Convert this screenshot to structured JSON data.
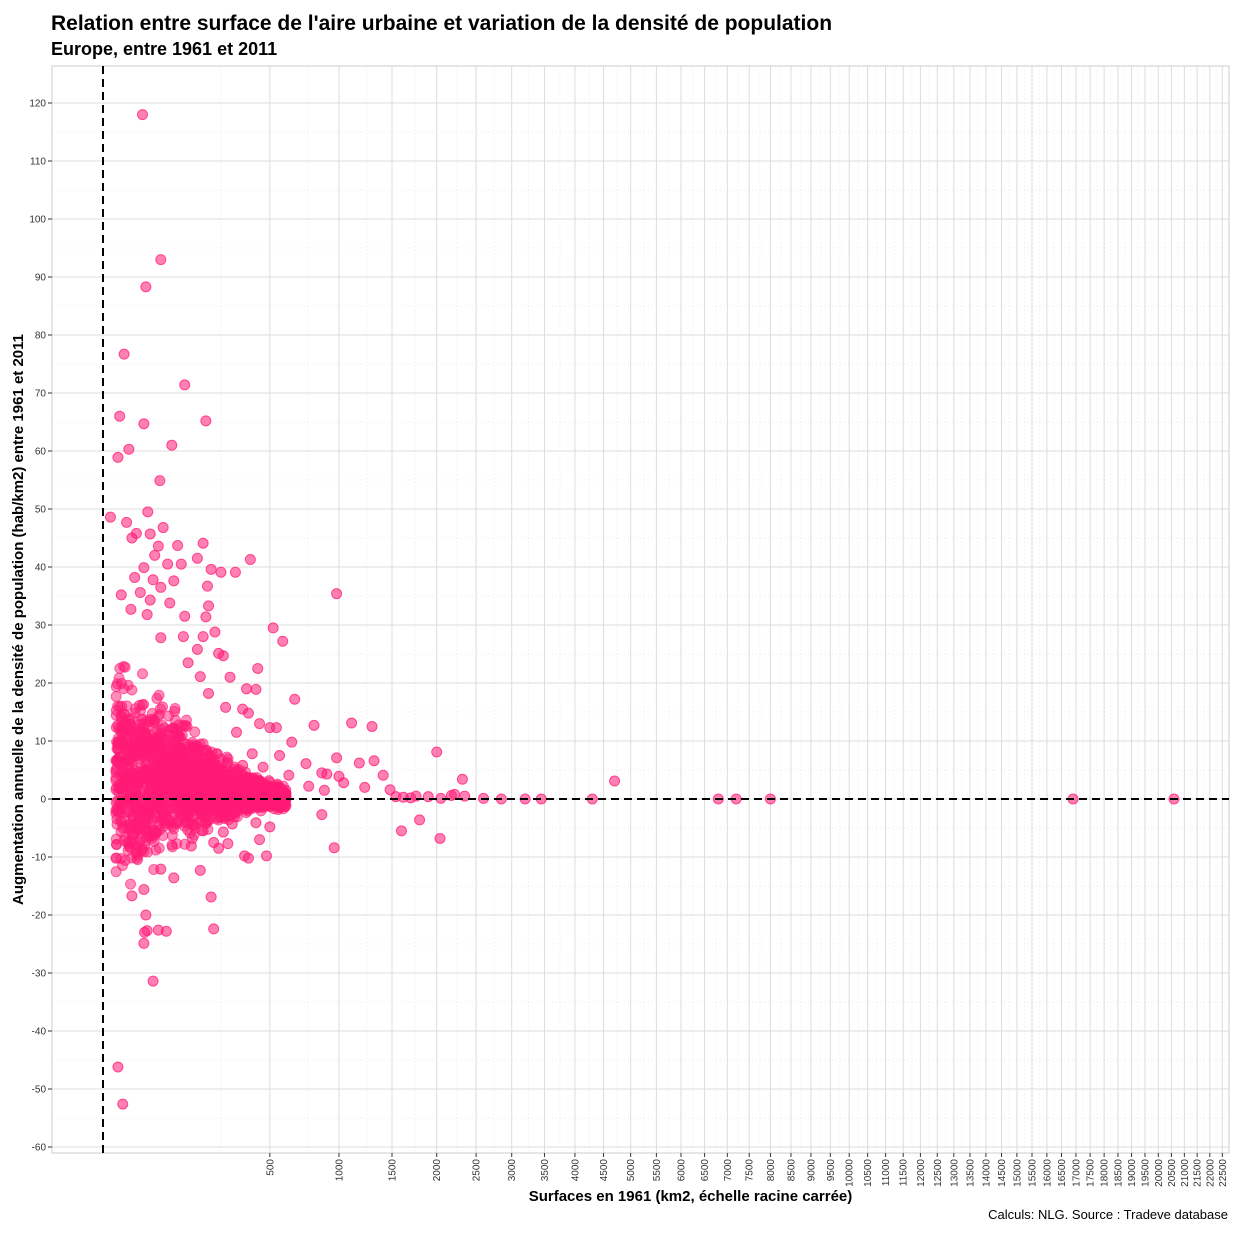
{
  "title": "Relation entre surface de l'aire urbaine et variation de la densité de population",
  "subtitle": "Europe, entre 1961 et 2011",
  "caption": "Calculs: NLG. Source : Tradeve database",
  "colors": {
    "point": "#ff1a75",
    "grid_major": "#dddddd",
    "grid_minor": "#e8e8e8",
    "reference_line": "#000000"
  },
  "chart_data": {
    "type": "scatter",
    "xlabel": "Surfaces en 1961 (km2, échelle racine carrée)",
    "ylabel": "Augmentation annuelle de la densité de population (hab/km2) entre 1961 et 2011",
    "x_scale": "sqrt",
    "xlim": [
      0,
      23000
    ],
    "ylim": [
      -61,
      124
    ],
    "x_ticks": [
      500,
      1000,
      1500,
      2000,
      2500,
      3000,
      3500,
      4000,
      4500,
      5000,
      5500,
      6000,
      6500,
      7000,
      7500,
      8000,
      8500,
      9000,
      9500,
      10000,
      10500,
      11000,
      11500,
      12000,
      12500,
      13000,
      13500,
      14000,
      14500,
      15000,
      15500,
      16000,
      16500,
      17000,
      17500,
      18000,
      18500,
      19000,
      19500,
      20000,
      20500,
      21000,
      21500,
      22000,
      22500
    ],
    "y_ticks": [
      -60,
      -50,
      -40,
      -30,
      -20,
      -10,
      0,
      10,
      20,
      30,
      40,
      50,
      60,
      70,
      80,
      90,
      100,
      110,
      120
    ],
    "reference_lines": {
      "x": 0,
      "y": 0
    },
    "grid": true,
    "series": [
      {
        "points": [
          [
            28,
            118
          ],
          [
            60,
            93
          ],
          [
            33,
            88.3
          ],
          [
            8,
            76.7
          ],
          [
            120,
            71.4
          ],
          [
            190,
            65.2
          ],
          [
            5,
            66
          ],
          [
            30,
            64.7
          ],
          [
            85,
            61
          ],
          [
            12,
            60.3
          ],
          [
            4,
            58.9
          ],
          [
            58,
            54.9
          ],
          [
            1,
            48.6
          ],
          [
            10,
            47.7
          ],
          [
            36,
            49.5
          ],
          [
            65,
            46.8
          ],
          [
            20,
            45.8
          ],
          [
            15,
            45
          ],
          [
            40,
            45.7
          ],
          [
            180,
            44.1
          ],
          [
            55,
            43.6
          ],
          [
            100,
            43.7
          ],
          [
            48,
            42
          ],
          [
            75,
            40.5
          ],
          [
            110,
            40.5
          ],
          [
            160,
            41.5
          ],
          [
            390,
            41.3
          ],
          [
            250,
            39.1
          ],
          [
            315,
            39.1
          ],
          [
            210,
            39.6
          ],
          [
            30,
            39.9
          ],
          [
            18,
            38.2
          ],
          [
            45,
            37.8
          ],
          [
            90,
            37.6
          ],
          [
            196,
            36.7
          ],
          [
            60,
            36.5
          ],
          [
            25,
            35.6
          ],
          [
            980,
            35.4
          ],
          [
            6,
            35.2
          ],
          [
            40,
            34.3
          ],
          [
            80,
            33.8
          ],
          [
            14,
            32.7
          ],
          [
            200,
            33.3
          ],
          [
            120,
            31.5
          ],
          [
            35,
            31.8
          ],
          [
            190,
            31.4
          ],
          [
            520,
            29.5
          ],
          [
            225,
            28.8
          ],
          [
            116,
            28
          ],
          [
            180,
            28
          ],
          [
            580,
            27.2
          ],
          [
            60,
            27.8
          ],
          [
            160,
            25.8
          ],
          [
            260,
            24.7
          ],
          [
            240,
            25.1
          ],
          [
            430,
            22.5
          ],
          [
            130,
            23.5
          ],
          [
            170,
            21.1
          ],
          [
            290,
            21
          ],
          [
            370,
            19
          ],
          [
            420,
            18.9
          ],
          [
            200,
            18.2
          ],
          [
            660,
            17.2
          ],
          [
            270,
            15.8
          ],
          [
            350,
            15.5
          ],
          [
            380,
            14.8
          ],
          [
            800,
            12.7
          ],
          [
            1110,
            13.1
          ],
          [
            1300,
            12.5
          ],
          [
            440,
            13
          ],
          [
            500,
            12.3
          ],
          [
            540,
            12.3
          ],
          [
            320,
            11.5
          ],
          [
            640,
            9.8
          ],
          [
            2000,
            8.1
          ],
          [
            400,
            7.8
          ],
          [
            980,
            7.1
          ],
          [
            1320,
            6.6
          ],
          [
            1180,
            6.2
          ],
          [
            560,
            7.5
          ],
          [
            460,
            5.5
          ],
          [
            740,
            6.1
          ],
          [
            350,
            5.8
          ],
          [
            1410,
            4.1
          ],
          [
            620,
            4.1
          ],
          [
            860,
            4.5
          ],
          [
            1000,
            3.9
          ],
          [
            900,
            4.3
          ],
          [
            2320,
            3.4
          ],
          [
            4700,
            3.1
          ],
          [
            760,
            2.2
          ],
          [
            1230,
            2
          ],
          [
            1480,
            1.6
          ],
          [
            880,
            1.5
          ],
          [
            1040,
            2.8
          ],
          [
            600,
            1.5
          ],
          [
            520,
            1.2
          ],
          [
            300,
            -4.3
          ],
          [
            420,
            -4.1
          ],
          [
            500,
            -4.8
          ],
          [
            180,
            -5.5
          ],
          [
            260,
            -5.7
          ],
          [
            220,
            -7.5
          ],
          [
            280,
            -7.7
          ],
          [
            140,
            -8.1
          ],
          [
            240,
            -8.5
          ],
          [
            360,
            -9.8
          ],
          [
            440,
            -7
          ],
          [
            480,
            -9.8
          ],
          [
            380,
            -10.2
          ],
          [
            960,
            -8.4
          ],
          [
            860,
            -2.7
          ],
          [
            1600,
            -5.5
          ],
          [
            1800,
            -3.6
          ],
          [
            2040,
            -6.8
          ],
          [
            170,
            -12.3
          ],
          [
            90,
            -13.6
          ],
          [
            60,
            -12.1
          ],
          [
            30,
            -15.6
          ],
          [
            15,
            -16.7
          ],
          [
            210,
            -16.9
          ],
          [
            33,
            -20
          ],
          [
            55,
            -22.6
          ],
          [
            35,
            -22.7
          ],
          [
            31,
            -23
          ],
          [
            72,
            -22.8
          ],
          [
            220,
            -22.4
          ],
          [
            30,
            -24.9
          ],
          [
            45,
            -31.4
          ],
          [
            4,
            -46.2
          ],
          [
            7,
            -52.6
          ],
          [
            6800,
            0
          ],
          [
            7200,
            0
          ],
          [
            8000,
            0
          ],
          [
            16900,
            0
          ],
          [
            20600,
            0
          ],
          [
            2600,
            0.1
          ],
          [
            2850,
            0
          ],
          [
            3200,
            0
          ],
          [
            3450,
            0
          ],
          [
            4300,
            0
          ],
          [
            2350,
            0.5
          ],
          [
            2180,
            0.6
          ],
          [
            2220,
            0.8
          ],
          [
            1900,
            0.4
          ],
          [
            1620,
            0.3
          ],
          [
            1700,
            0.2
          ],
          [
            2050,
            0.1
          ],
          [
            1760,
            0.5
          ],
          [
            1540,
            0.4
          ]
        ]
      }
    ]
  }
}
